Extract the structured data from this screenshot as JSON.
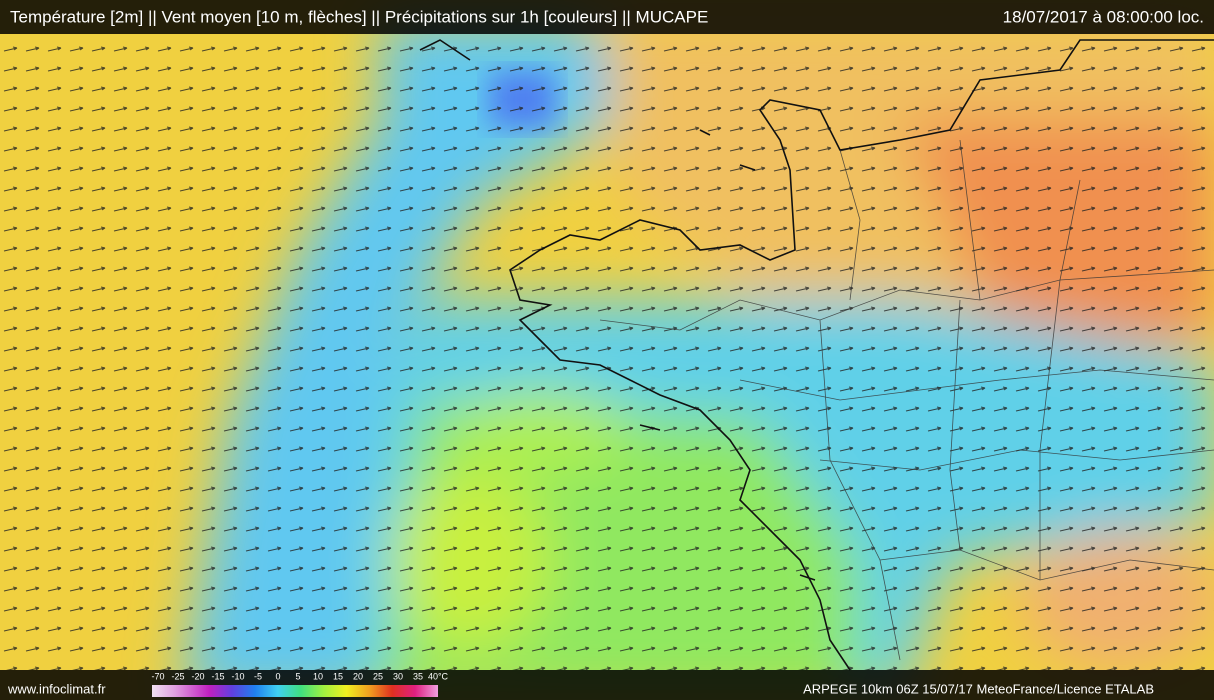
{
  "header": {
    "title": "Température [2m] || Vent moyen [10 m, flèches] || Précipitations sur 1h [couleurs] || MUCAPE",
    "datetime": "18/07/2017 à 08:00:00 loc."
  },
  "footer": {
    "site": "www.infoclimat.fr",
    "colorbar_labels": [
      "-70",
      "-25",
      "-20",
      "-15",
      "-10",
      "-5",
      "0",
      "5",
      "10",
      "15",
      "20",
      "25",
      "30",
      "35",
      "40°C"
    ],
    "credit": "ARPEGE 10km 06Z 15/07/17 MeteoFrance/Licence ETALAB"
  }
}
